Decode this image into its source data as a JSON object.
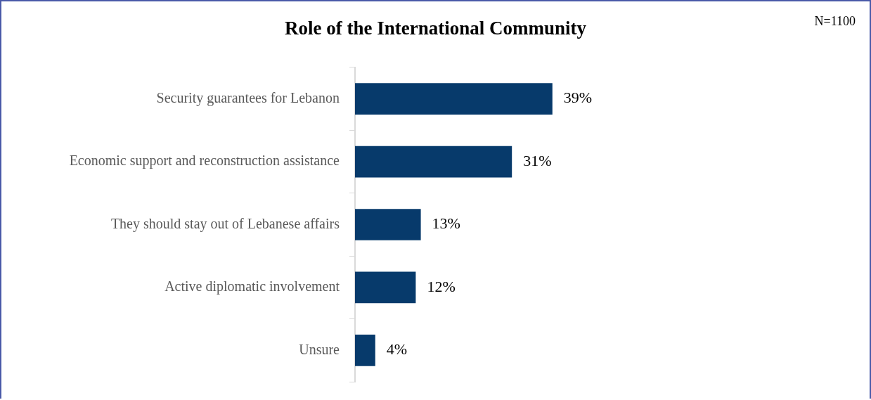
{
  "chart_data": {
    "type": "bar",
    "orientation": "horizontal",
    "title": "Role of the International Community",
    "categories": [
      "Security guarantees for Lebanon",
      "Economic support and reconstruction assistance",
      "They should stay out of Lebanese affairs",
      "Active diplomatic involvement",
      "Unsure"
    ],
    "values": [
      39,
      31,
      13,
      12,
      4
    ],
    "value_labels": [
      "39%",
      "31%",
      "13%",
      "12%",
      "4%"
    ],
    "color": "#073a6b",
    "tick_labels": "y",
    "grid": false,
    "legend": false,
    "annotations": [
      "N=1100"
    ]
  }
}
